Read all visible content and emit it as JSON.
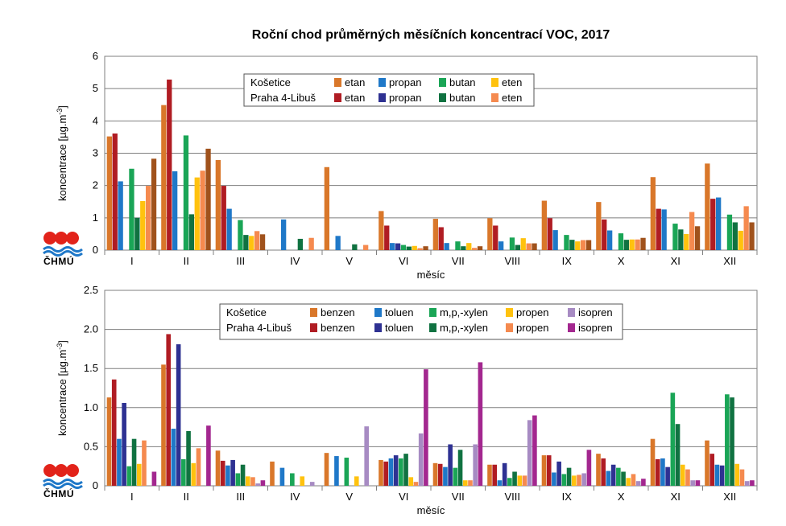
{
  "title": "Roční chod průměrných měsíčních koncentrací VOC, 2017",
  "logo": {
    "text": "ČHMÚ"
  },
  "colors": {
    "etan_k": "#d9772a",
    "etan_p": "#b01c23",
    "propan_k": "#1f78c8",
    "propan_p": "#2e3192",
    "butan_k": "#1aa556",
    "butan_p": "#107241",
    "eten_k": "#ffc20e",
    "eten_p": "#f58a4f",
    "benzen_k": "#d9772a",
    "benzen_p": "#b01c23",
    "toluen_k": "#1f78c8",
    "toluen_p": "#2e3192",
    "xylen_k": "#1aa556",
    "xylen_p": "#107241",
    "propen_k": "#ffc20e",
    "propen_p": "#f58a4f",
    "isopren_k": "#a78bc3",
    "isopren_p": "#a3278f",
    "grid": "#7f7f7f"
  },
  "chart_data": [
    {
      "type": "bar",
      "title": "Roční chod průměrných měsíčních koncentrací VOC, 2017",
      "xlabel": "měsíc",
      "ylabel": "koncentrace [µg.m",
      "ylabel_sup": "-3",
      "ylabel_close": "]",
      "ylim": [
        0,
        6
      ],
      "yticks": [
        "0",
        "1",
        "2",
        "3",
        "4",
        "5",
        "6"
      ],
      "grid": true,
      "legend_position": "top",
      "legend_rows": [
        "Košetice",
        "Praha 4-Libuš"
      ],
      "categories": [
        "I",
        "II",
        "III",
        "IV",
        "V",
        "VI",
        "VII",
        "VIII",
        "IX",
        "X",
        "XI",
        "XII"
      ],
      "series": [
        {
          "name": "etan",
          "station": "Košetice",
          "color_key": "etan_k",
          "values": [
            3.52,
            4.49,
            2.79,
            null,
            2.57,
            1.21,
            0.97,
            0.99,
            1.53,
            1.49,
            2.26,
            2.68
          ]
        },
        {
          "name": "etan",
          "station": "Praha 4-Libuš",
          "color_key": "etan_p",
          "values": [
            3.61,
            5.28,
            1.99,
            null,
            null,
            0.76,
            0.71,
            0.76,
            0.99,
            0.95,
            1.28,
            1.59
          ]
        },
        {
          "name": "propan",
          "station": "Košetice",
          "color_key": "propan_k",
          "values": [
            2.13,
            2.44,
            1.28,
            0.95,
            0.44,
            0.22,
            0.22,
            0.27,
            0.62,
            0.61,
            1.26,
            1.63
          ]
        },
        {
          "name": "propan",
          "station": "Praha 4-Libuš",
          "color_key": "propan_p",
          "values": [
            null,
            null,
            null,
            null,
            null,
            0.21,
            null,
            null,
            null,
            null,
            null,
            null
          ]
        },
        {
          "name": "butan",
          "station": "Košetice",
          "color_key": "butan_k",
          "values": [
            2.52,
            3.55,
            0.93,
            null,
            null,
            0.16,
            0.27,
            0.39,
            0.47,
            0.52,
            0.82,
            1.1
          ]
        },
        {
          "name": "butan",
          "station": "Praha 4-Libuš",
          "color_key": "butan_p",
          "values": [
            1.0,
            1.11,
            0.47,
            0.35,
            0.18,
            0.11,
            0.12,
            0.16,
            0.32,
            0.32,
            0.64,
            0.86
          ]
        },
        {
          "name": "eten",
          "station": "Košetice",
          "color_key": "eten_k",
          "values": [
            1.52,
            2.25,
            0.44,
            null,
            null,
            0.13,
            0.22,
            0.37,
            0.27,
            0.33,
            0.5,
            0.6
          ]
        },
        {
          "name": "eten",
          "station": "Praha 4-Libuš",
          "color_key": "eten_p",
          "values": [
            1.99,
            2.46,
            0.59,
            0.38,
            0.16,
            0.06,
            0.07,
            0.21,
            0.31,
            0.33,
            1.18,
            1.36
          ]
        },
        {
          "name": "",
          "station": "",
          "color_key": "etan_dark",
          "values": [
            2.83,
            3.14,
            0.49,
            null,
            null,
            0.12,
            0.12,
            0.21,
            0.31,
            0.38,
            0.74,
            0.86
          ]
        }
      ]
    },
    {
      "type": "bar",
      "xlabel": "měsíc",
      "ylabel": "koncentrace [µg.m",
      "ylabel_sup": "-3",
      "ylabel_close": "]",
      "ylim": [
        0,
        2.5
      ],
      "yticks": [
        "0",
        "0.5",
        "1.0",
        "1.5",
        "2.0",
        "2.5"
      ],
      "grid": true,
      "legend_position": "top",
      "legend_rows": [
        "Košetice",
        "Praha 4-Libuš"
      ],
      "categories": [
        "I",
        "II",
        "III",
        "IV",
        "V",
        "VI",
        "VII",
        "VIII",
        "IX",
        "X",
        "XI",
        "XII"
      ],
      "series": [
        {
          "name": "benzen",
          "station": "Košetice",
          "color_key": "benzen_k",
          "values": [
            1.13,
            1.55,
            0.45,
            0.31,
            0.42,
            0.33,
            0.29,
            0.27,
            0.39,
            0.41,
            0.6,
            0.58
          ]
        },
        {
          "name": "benzen",
          "station": "Praha 4-Libuš",
          "color_key": "benzen_p",
          "values": [
            1.36,
            1.94,
            0.32,
            null,
            null,
            0.31,
            0.28,
            0.27,
            0.39,
            0.35,
            0.34,
            0.41
          ]
        },
        {
          "name": "toluen",
          "station": "Košetice",
          "color_key": "toluen_k",
          "values": [
            0.6,
            0.73,
            0.26,
            0.23,
            0.38,
            0.35,
            0.24,
            0.07,
            0.17,
            0.19,
            0.35,
            0.27
          ]
        },
        {
          "name": "toluen",
          "station": "Praha 4-Libuš",
          "color_key": "toluen_p",
          "values": [
            1.06,
            1.81,
            0.33,
            null,
            null,
            0.39,
            0.53,
            0.29,
            0.31,
            0.27,
            0.24,
            0.26
          ]
        },
        {
          "name": "m,p,-xylen",
          "station": "Košetice",
          "color_key": "xylen_k",
          "values": [
            0.25,
            0.34,
            0.16,
            0.16,
            0.36,
            0.35,
            0.23,
            0.1,
            0.15,
            0.23,
            1.19,
            1.17
          ]
        },
        {
          "name": "m,p,-xylen",
          "station": "Praha 4-Libuš",
          "color_key": "xylen_p",
          "values": [
            0.6,
            0.7,
            0.27,
            null,
            null,
            0.41,
            0.46,
            0.18,
            0.23,
            0.18,
            0.79,
            1.13
          ]
        },
        {
          "name": "propen",
          "station": "Košetice",
          "color_key": "propen_k",
          "values": [
            0.28,
            0.29,
            0.12,
            0.12,
            0.12,
            0.11,
            0.07,
            0.13,
            0.13,
            0.1,
            0.27,
            0.28
          ]
        },
        {
          "name": "propen",
          "station": "Praha 4-Libuš",
          "color_key": "propen_p",
          "values": [
            0.58,
            0.48,
            0.11,
            null,
            null,
            0.05,
            0.07,
            0.13,
            0.14,
            0.15,
            0.21,
            0.21
          ]
        },
        {
          "name": "isopren",
          "station": "Košetice",
          "color_key": "isopren_k",
          "values": [
            0.0,
            0.0,
            0.03,
            0.05,
            0.76,
            0.67,
            0.53,
            0.84,
            0.16,
            0.06,
            0.07,
            0.06
          ]
        },
        {
          "name": "isopren",
          "station": "Praha 4-Libuš",
          "color_key": "isopren_p",
          "values": [
            0.18,
            0.77,
            0.07,
            null,
            null,
            1.49,
            1.58,
            0.9,
            0.46,
            0.09,
            0.07,
            0.07
          ]
        }
      ]
    }
  ]
}
